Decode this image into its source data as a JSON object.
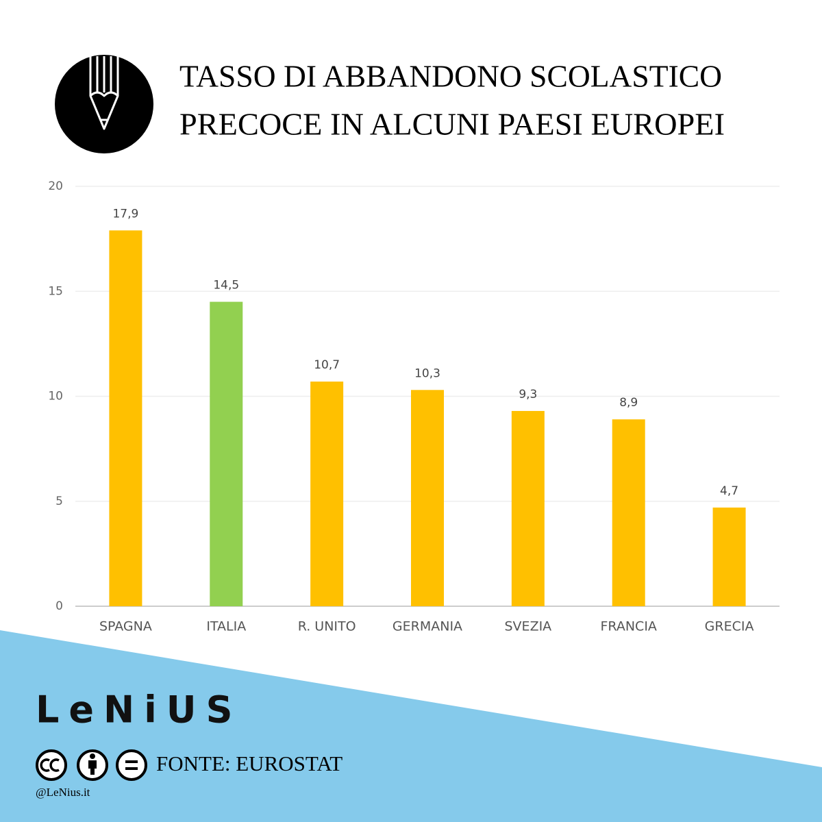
{
  "chart_data": {
    "type": "bar",
    "title_lines": [
      "TASSO DI ABBANDONO SCOLASTICO",
      "PRECOCE IN ALCUNI PAESI EUROPEI"
    ],
    "categories": [
      "SPAGNA",
      "ITALIA",
      "R. UNITO",
      "GERMANIA",
      "SVEZIA",
      "FRANCIA",
      "GRECIA"
    ],
    "values": [
      17.9,
      14.5,
      10.7,
      10.3,
      9.3,
      8.9,
      4.7
    ],
    "value_labels": [
      "17,9",
      "14,5",
      "10,7",
      "10,3",
      "9,3",
      "8,9",
      "4,7"
    ],
    "colors": [
      "#ffc000",
      "#92d050",
      "#ffc000",
      "#ffc000",
      "#ffc000",
      "#ffc000",
      "#ffc000"
    ],
    "ylim": [
      0,
      20
    ],
    "yticks": [
      0,
      5,
      10,
      15,
      20
    ],
    "grid": true
  },
  "footer": {
    "logo": "LeNiUS",
    "source": "FONTE: EUROSTAT",
    "handle": "@LeNius.it"
  }
}
